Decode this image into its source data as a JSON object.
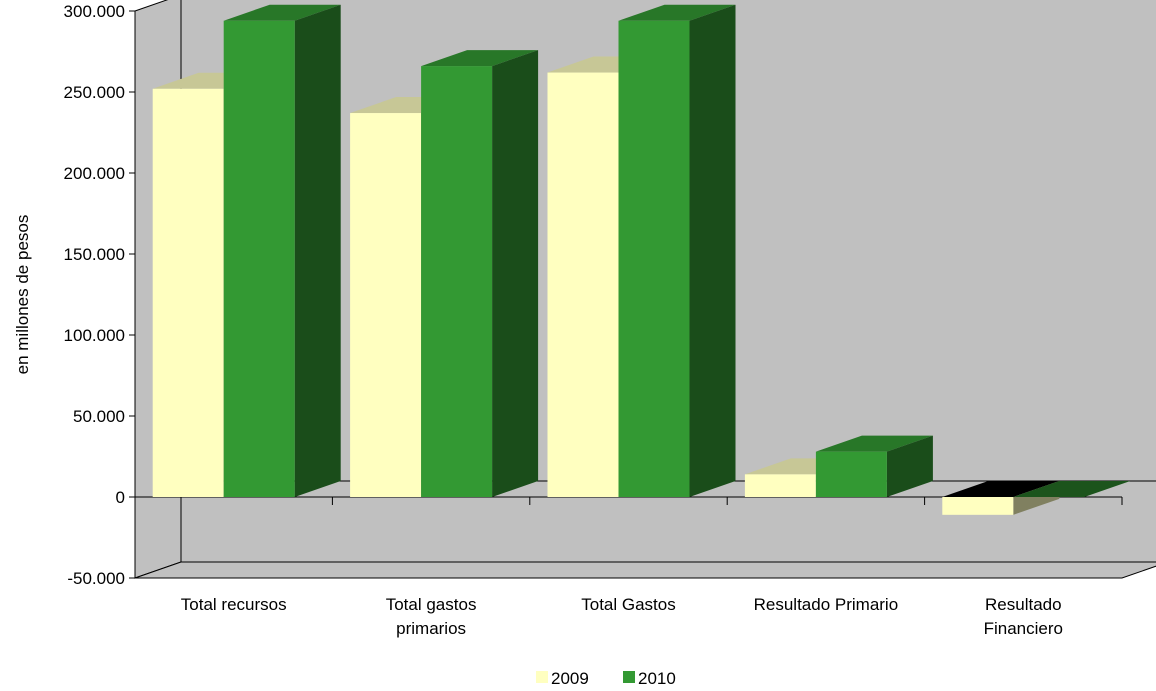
{
  "chart_data": {
    "type": "bar",
    "title": "",
    "xlabel": "",
    "ylabel": "en millones de  pesos",
    "ylim": [
      -50000,
      300000
    ],
    "yticks": [
      {
        "value": 300000,
        "label": "300.000"
      },
      {
        "value": 250000,
        "label": "250.000"
      },
      {
        "value": 200000,
        "label": "200.000"
      },
      {
        "value": 150000,
        "label": "150.000"
      },
      {
        "value": 100000,
        "label": "100.000"
      },
      {
        "value": 50000,
        "label": "50.000"
      },
      {
        "value": 0,
        "label": "0"
      },
      {
        "value": -50000,
        "label": "-50.000"
      }
    ],
    "categories": [
      [
        "Total recursos"
      ],
      [
        "Total gastos",
        "primarios"
      ],
      [
        "Total Gastos"
      ],
      [
        "Resultado Primario"
      ],
      [
        "Resultado",
        "Financiero"
      ]
    ],
    "series": [
      {
        "name": "2009",
        "color": "#FFFFC0",
        "values": [
          252000,
          237000,
          262000,
          14000,
          -11000
        ]
      },
      {
        "name": "2010",
        "color": "#339933",
        "values": [
          294000,
          266000,
          294000,
          28000,
          0
        ]
      }
    ],
    "wall_color": "#C0C0C0",
    "grid": false,
    "legend_position": "bottom"
  }
}
